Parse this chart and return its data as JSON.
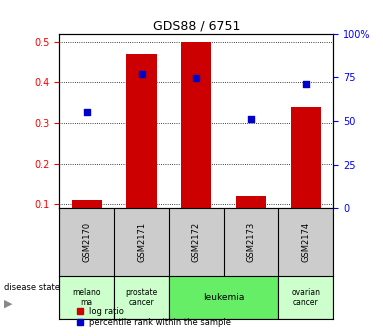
{
  "title": "GDS88 / 6751",
  "samples": [
    "GSM2170",
    "GSM2171",
    "GSM2172",
    "GSM2173",
    "GSM2174"
  ],
  "log_ratio": [
    0.11,
    0.47,
    0.5,
    0.12,
    0.34
  ],
  "percentile_rank_mapped": [
    0.328,
    0.42,
    0.41,
    0.31,
    0.397
  ],
  "disease_labels": [
    {
      "label": "melano\nma",
      "span": [
        0,
        1
      ],
      "color": "#ccffcc"
    },
    {
      "label": "prostate\ncancer",
      "span": [
        1,
        2
      ],
      "color": "#ccffcc"
    },
    {
      "label": "leukemia",
      "span": [
        2,
        4
      ],
      "color": "#66ee66"
    },
    {
      "label": "ovarian\ncancer",
      "span": [
        4,
        5
      ],
      "color": "#ccffcc"
    }
  ],
  "bar_color": "#cc0000",
  "dot_color": "#0000cc",
  "ylim_left": [
    0.09,
    0.52
  ],
  "ylim_right": [
    0,
    100
  ],
  "yticks_left": [
    0.1,
    0.2,
    0.3,
    0.4,
    0.5
  ],
  "ytick_labels_left": [
    "0.1",
    "0.2",
    "0.3",
    "0.4",
    "0.5"
  ],
  "yticks_right": [
    0,
    25,
    50,
    75,
    100
  ],
  "ytick_labels_right": [
    "0",
    "25",
    "50",
    "75",
    "100%"
  ],
  "bar_width": 0.55,
  "background_color": "#ffffff",
  "sample_box_color": "#cccccc"
}
